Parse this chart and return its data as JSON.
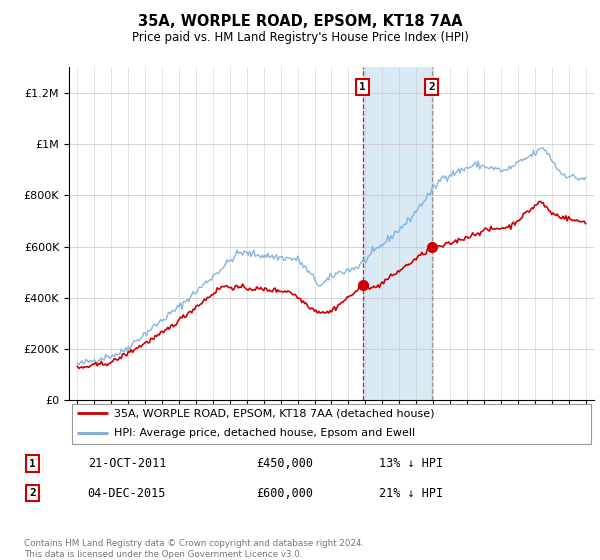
{
  "title": "35A, WORPLE ROAD, EPSOM, KT18 7AA",
  "subtitle": "Price paid vs. HM Land Registry's House Price Index (HPI)",
  "hpi_label": "HPI: Average price, detached house, Epsom and Ewell",
  "property_label": "35A, WORPLE ROAD, EPSOM, KT18 7AA (detached house)",
  "footnote": "Contains HM Land Registry data © Crown copyright and database right 2024.\nThis data is licensed under the Open Government Licence v3.0.",
  "transaction1": {
    "num": 1,
    "date": "21-OCT-2011",
    "price": "£450,000",
    "hpi": "13% ↓ HPI"
  },
  "transaction2": {
    "num": 2,
    "date": "04-DEC-2015",
    "price": "£600,000",
    "hpi": "21% ↓ HPI"
  },
  "hpi_color": "#7aaddc",
  "property_color": "#cc0000",
  "vline2_color": "#888888",
  "shade_color": "#daeaf5",
  "marker1_x": 2011.85,
  "marker2_x": 2015.92,
  "ylim": [
    0,
    1300000
  ],
  "xlim_start": 1994.5,
  "xlim_end": 2025.5
}
